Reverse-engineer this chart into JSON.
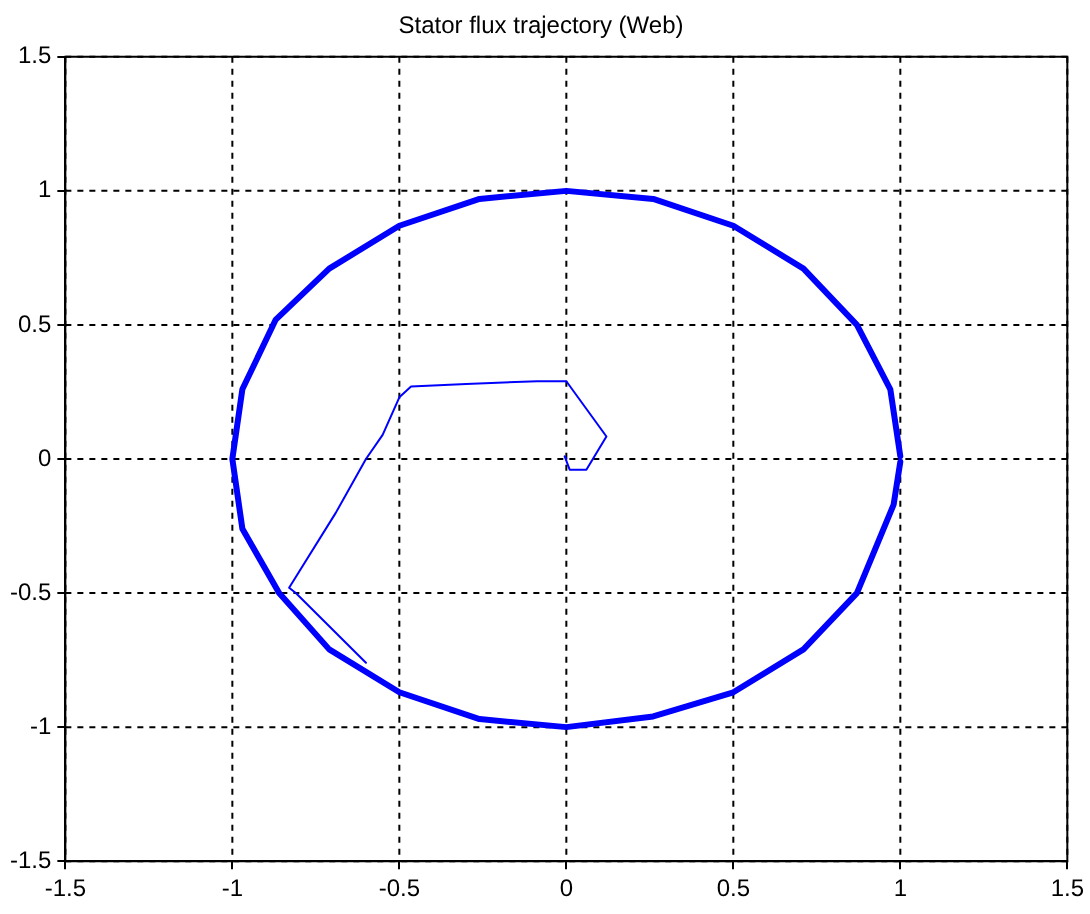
{
  "chart_data": {
    "type": "line",
    "title": "Stator flux trajectory (Web)",
    "xlim": [
      -1.5,
      1.5
    ],
    "ylim": [
      -1.5,
      1.5
    ],
    "xticks": [
      -1.5,
      -1,
      -0.5,
      0,
      0.5,
      1,
      1.5
    ],
    "yticks": [
      -1.5,
      -1,
      -0.5,
      0,
      0.5,
      1,
      1.5
    ],
    "grid": true,
    "line_style": "solid",
    "marker": "none",
    "legend": false,
    "series": [
      {
        "color": "#0000ff",
        "x": [
          0,
          -0.005,
          0.01,
          0.06,
          0.12,
          0,
          -0.087,
          -0.3,
          -0.465,
          -0.5,
          -0.55,
          -0.6,
          -0.69,
          -0.83,
          -0.81,
          -0.6
        ],
        "values": [
          0,
          0.01,
          -0.04,
          -0.04,
          0.084,
          0.29,
          0.29,
          0.28,
          0.27,
          0.23,
          0.09,
          0,
          -0.2,
          -0.48,
          -0.5,
          -0.76
        ]
      },
      {
        "color": "#0000ff",
        "x": [
          1,
          0.97,
          0.87,
          0.71,
          0.5,
          0.26,
          0,
          -0.26,
          -0.5,
          -0.71,
          -0.87,
          -0.97,
          -1,
          -0.97,
          -0.86,
          -0.71,
          -0.5,
          -0.26,
          0,
          0.26,
          0.5,
          0.71,
          0.87,
          0.98,
          1
        ],
        "values": [
          0.01,
          0.26,
          0.5,
          0.71,
          0.87,
          0.97,
          1,
          0.97,
          0.87,
          0.71,
          0.52,
          0.26,
          0,
          -0.26,
          -0.5,
          -0.71,
          -0.87,
          -0.97,
          -1,
          -0.96,
          -0.87,
          -0.71,
          -0.5,
          -0.17,
          -0.01
        ]
      }
    ]
  }
}
